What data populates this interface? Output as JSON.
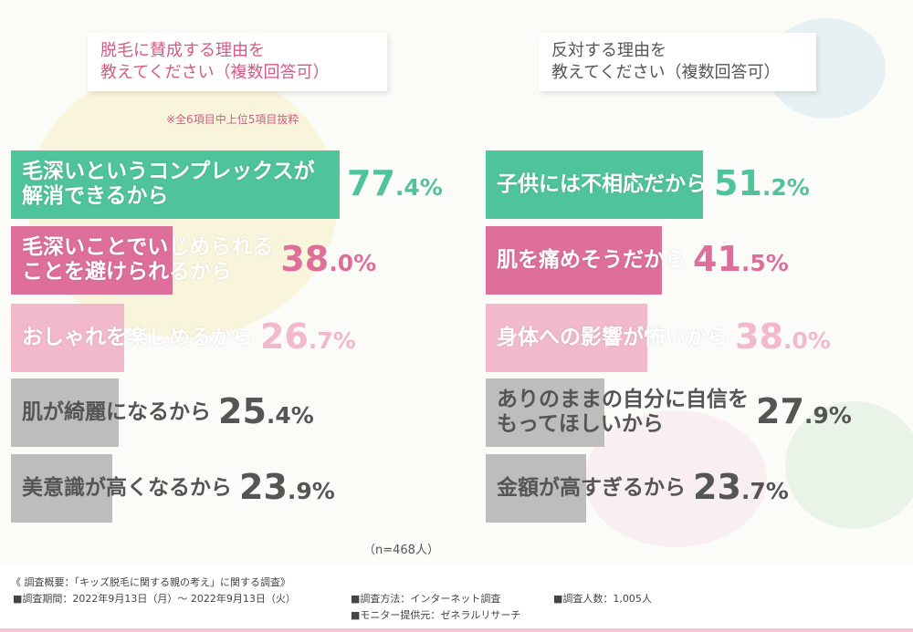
{
  "colors": {
    "teal": "#4fc39c",
    "magenta": "#dd6f9a",
    "pink": "#f2b8cc",
    "gray": "#bdbdbd"
  },
  "left_title": {
    "line1": "脱毛に賛成する理由を",
    "line2": "教えてください（複数回答可）"
  },
  "right_title": {
    "line1": "反対する理由を",
    "line2": "教えてください（複数回答可）"
  },
  "note": "※全6項目中上位5項目抜粋",
  "sample_note": "（n=468人）",
  "chart_data": [
    {
      "type": "bar",
      "orientation": "horizontal",
      "unit": "%",
      "xlim": [
        0,
        100
      ],
      "categories": [
        "毛深いというコンプレックスが\n解消できるから",
        "毛深いことでいじめられる\nことを避けられるから",
        "おしゃれを楽しめるから",
        "肌が綺麗になるから",
        "美意識が高くなるから"
      ],
      "values": [
        77.4,
        38.0,
        26.7,
        25.4,
        23.9
      ],
      "values_int": [
        "77",
        "38",
        "26",
        "25",
        "23"
      ],
      "values_dec": [
        ".4",
        ".0",
        ".7",
        ".4",
        ".9"
      ],
      "bar_colors": [
        "teal",
        "magenta",
        "pink",
        "gray",
        "gray"
      ]
    },
    {
      "type": "bar",
      "orientation": "horizontal",
      "unit": "%",
      "xlim": [
        0,
        100
      ],
      "categories": [
        "子供には不相応だから",
        "肌を痛めそうだから",
        "身体への影響が怖いから",
        "ありのままの自分に自信を\nもってほしいから",
        "金額が高すぎるから"
      ],
      "values": [
        51.2,
        41.5,
        38.0,
        27.9,
        23.7
      ],
      "values_int": [
        "51",
        "41",
        "38",
        "27",
        "23"
      ],
      "values_dec": [
        ".2",
        ".5",
        ".0",
        ".9",
        ".7"
      ],
      "bar_colors": [
        "teal",
        "magenta",
        "pink",
        "gray",
        "gray"
      ]
    }
  ],
  "footer": {
    "overview": "《 調査概要：「キッズ脱毛に関する親の考え」に関する調査》",
    "period": "■調査期間：2022年9月13日（月）～ 2022年9月13日（火）",
    "method": "■調査方法：インターネット調査",
    "count": "■調査人数：1,005人",
    "provider": "■モニター提供元：ゼネラルリサーチ"
  }
}
